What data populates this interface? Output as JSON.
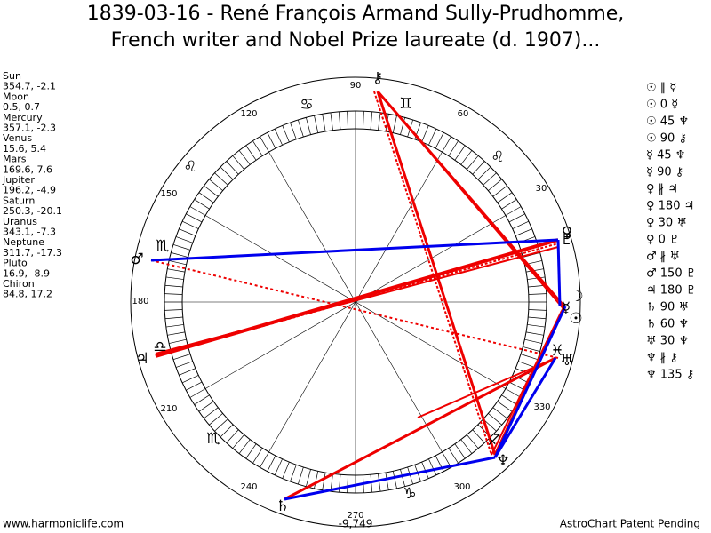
{
  "header": {
    "title_line1": "1839-03-16 - René François Armand Sully-Prudhomme,",
    "title_line2": "French writer and Nobel Prize laureate (d. 1907)..."
  },
  "planets": [
    {
      "name": "Sun",
      "coords": "354.7, -2.1",
      "glyph": "☉"
    },
    {
      "name": "Moon",
      "coords": "0.5, 0.7",
      "glyph": "☽"
    },
    {
      "name": "Mercury",
      "coords": "357.1, -2.3",
      "glyph": "☿"
    },
    {
      "name": "Venus",
      "coords": "15.6, 5.4",
      "glyph": "♀"
    },
    {
      "name": "Mars",
      "coords": "169.6, 7.6",
      "glyph": "♂"
    },
    {
      "name": "Jupiter",
      "coords": "196.2, -4.9",
      "glyph": "♃"
    },
    {
      "name": "Saturn",
      "coords": "250.3, -20.1",
      "glyph": "♄"
    },
    {
      "name": "Uranus",
      "coords": "343.1, -7.3",
      "glyph": "♅"
    },
    {
      "name": "Neptune",
      "coords": "311.7, -17.3",
      "glyph": "♆"
    },
    {
      "name": "Pluto",
      "coords": "16.9, -8.9",
      "glyph": "♇"
    },
    {
      "name": "Chiron",
      "coords": "84.8, 17.2",
      "glyph": "⚷"
    }
  ],
  "aspects": [
    "☉ ∥ ☿",
    "☉ 0 ☿",
    "☉ 45 ♆",
    "☉ 90 ⚷",
    "☿ 45 ♆",
    "☿ 90 ⚷",
    "♀ ∦ ♃",
    "♀ 180 ♃",
    "♀ 30 ♅",
    "♀ 0 ♇",
    "♂ ∦ ♅",
    "♂ 150 ♇",
    "♃ 180 ♇",
    "♄ 90 ♅",
    "♄ 60 ♆",
    "♅ 30 ♆",
    "♆ ∦ ⚷",
    "♆ 135 ⚷"
  ],
  "degree_labels": [
    "90",
    "60",
    "30",
    "120",
    "150",
    "180",
    "210",
    "240",
    "270",
    "300",
    "330"
  ],
  "zodiac": [
    "♋",
    "♊",
    "♌",
    "♌",
    "♏",
    "♎",
    "♏",
    "♑",
    "♐",
    "♓"
  ],
  "footer": {
    "left": "www.harmoniclife.com",
    "center": "-9,749",
    "right": "AstroChart Patent Pending"
  }
}
